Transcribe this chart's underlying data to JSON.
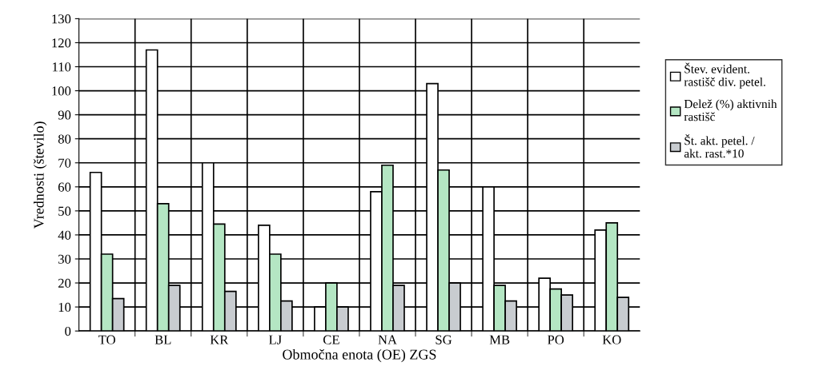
{
  "chart_data": {
    "type": "bar",
    "xlabel": "Območna enota (OE) ZGS",
    "ylabel": "Vrednosti (število)",
    "categories": [
      "TO",
      "BL",
      "KR",
      "LJ",
      "CE",
      "NA",
      "SG",
      "MB",
      "PO",
      "KO"
    ],
    "series": [
      {
        "name": "Štev. evident.\nrastišč div. petel.",
        "color": "#ffffff",
        "values": [
          66,
          117,
          70,
          44,
          10,
          58,
          103,
          60,
          22,
          42
        ]
      },
      {
        "name": "Delež (%) aktivnih\nrastišč",
        "color": "#b4e6c3",
        "values": [
          32,
          53,
          44.5,
          32,
          20,
          69,
          67,
          19,
          17.5,
          45
        ]
      },
      {
        "name": "Št. akt. petel. /\nakt. rast.*10",
        "color": "#c8ccd0",
        "values": [
          13.5,
          19,
          16.5,
          12.5,
          10,
          19,
          20,
          12.5,
          15,
          14
        ]
      }
    ],
    "ylim": [
      0,
      130
    ],
    "yticks": [
      0,
      10,
      20,
      30,
      40,
      50,
      60,
      70,
      80,
      90,
      100,
      110,
      120,
      130
    ],
    "grid": true,
    "legend": "right"
  }
}
